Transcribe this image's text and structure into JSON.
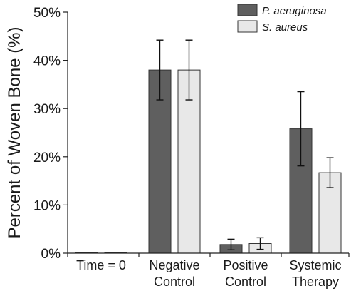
{
  "chart_data": {
    "type": "bar",
    "title": "",
    "xlabel": "",
    "ylabel": "Percent of Woven Bone (%)",
    "ylim": [
      0,
      50
    ],
    "yticks": [
      {
        "value": 0,
        "label": "0%"
      },
      {
        "value": 10,
        "label": "10%"
      },
      {
        "value": 20,
        "label": "20%"
      },
      {
        "value": 30,
        "label": "30%"
      },
      {
        "value": 40,
        "label": "40%"
      },
      {
        "value": 50,
        "label": "50%"
      }
    ],
    "categories": [
      {
        "line1": "Time = 0",
        "line2": ""
      },
      {
        "line1": "Negative",
        "line2": "Control"
      },
      {
        "line1": "Positive",
        "line2": "Control"
      },
      {
        "line1": "Systemic",
        "line2": "Therapy"
      }
    ],
    "series": [
      {
        "name": "P. aeruginosa",
        "color": "#5f5f5f",
        "values": [
          0.1,
          38,
          1.8,
          25.8
        ],
        "err": [
          null,
          6.2,
          1.1,
          7.7
        ]
      },
      {
        "name": "S. aureus",
        "color": "#e8e8e8",
        "values": [
          0.1,
          38,
          2.0,
          16.7
        ],
        "err": [
          null,
          6.2,
          1.2,
          3.1
        ]
      }
    ],
    "legend_position": "top-right",
    "grid": false
  }
}
